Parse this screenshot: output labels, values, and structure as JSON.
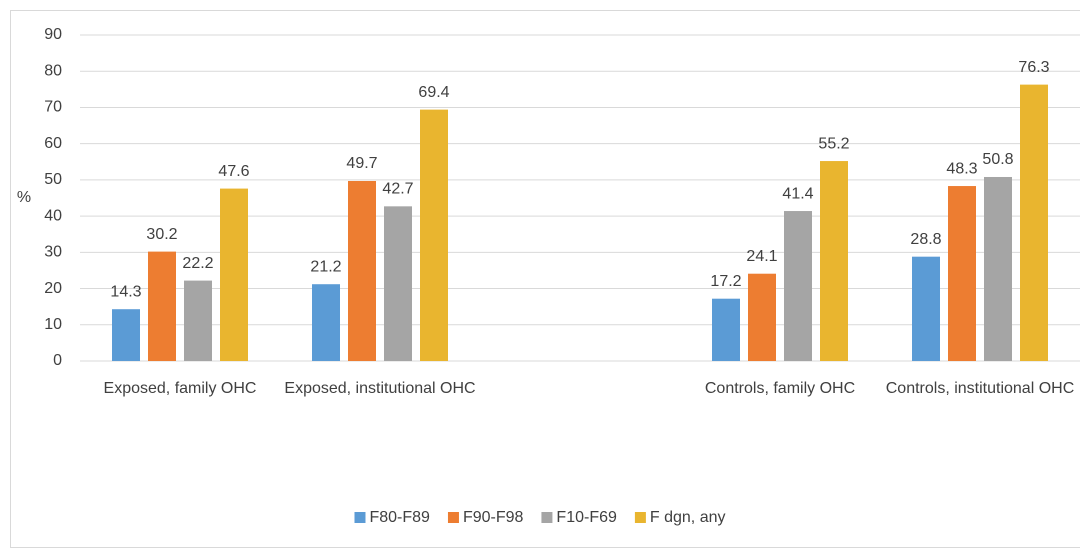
{
  "chart_data": {
    "type": "bar",
    "y_label": "%",
    "categories": [
      "Exposed, family OHC",
      "Exposed, institutional OHC",
      null,
      "Controls, family OHC",
      "Controls, institutional OHC"
    ],
    "series": [
      {
        "name": "F80-F89",
        "color": "#5b9bd5",
        "values": [
          14.3,
          21.2,
          null,
          17.2,
          28.8
        ]
      },
      {
        "name": "F90-F98",
        "color": "#ed7d31",
        "values": [
          30.2,
          49.7,
          null,
          24.1,
          48.3
        ]
      },
      {
        "name": "F10-F69",
        "color": "#a5a5a5",
        "values": [
          22.2,
          42.7,
          null,
          41.4,
          50.8
        ]
      },
      {
        "name": "F dgn, any",
        "color": "#e9b52f",
        "values": [
          47.6,
          69.4,
          null,
          55.2,
          76.3
        ]
      }
    ],
    "ylim": [
      0,
      90
    ],
    "yticks": [
      0,
      10,
      20,
      30,
      40,
      50,
      60,
      70,
      80,
      90
    ],
    "grid": true,
    "legend": "bottom"
  }
}
